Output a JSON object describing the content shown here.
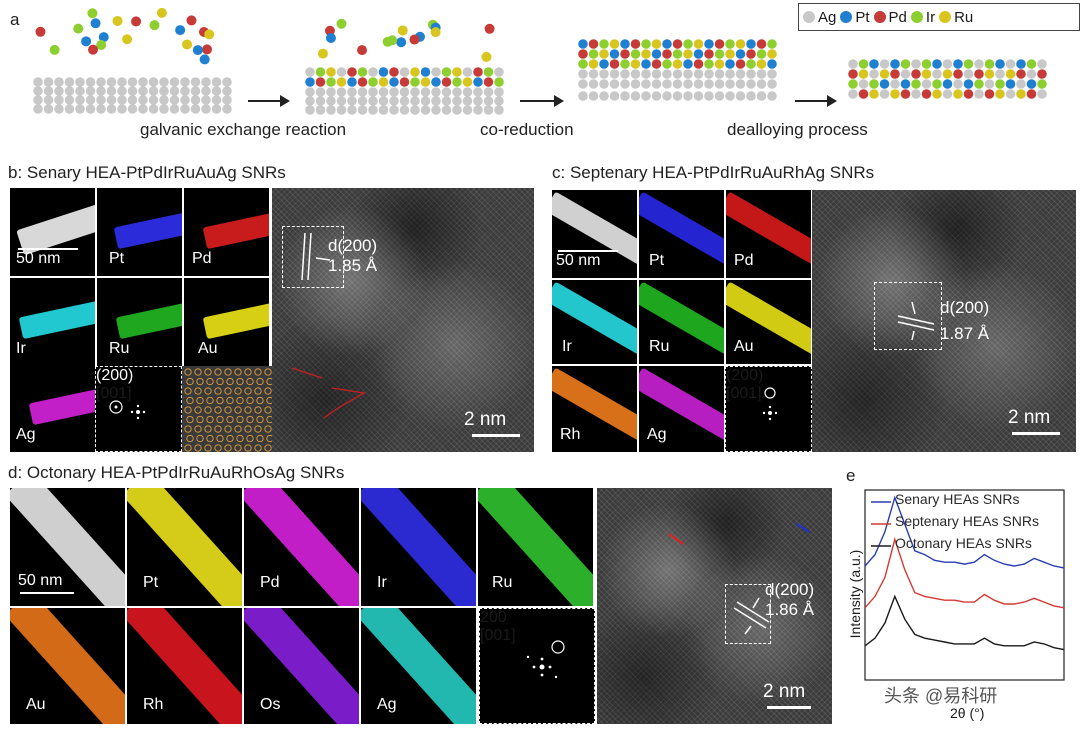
{
  "colors": {
    "ag": "#c8c8c8",
    "pt": "#1f7fd0",
    "pd": "#c63a38",
    "ir": "#8ccf2f",
    "ru": "#d8c61e",
    "blue_line": "#2a3fb0",
    "red_line": "#d23a34",
    "black_line": "#1a1a1a"
  },
  "panel_a": {
    "label": "a",
    "steps": [
      "galvanic exchange reaction",
      "co-reduction",
      "dealloying process"
    ],
    "legend": [
      {
        "name": "Ag",
        "color": "#c8c8c8"
      },
      {
        "name": "Pt",
        "color": "#1f7fd0"
      },
      {
        "name": "Pd",
        "color": "#c63a38"
      },
      {
        "name": "Ir",
        "color": "#8ccf2f"
      },
      {
        "name": "Ru",
        "color": "#d8c61e"
      }
    ]
  },
  "panel_b": {
    "title": "b: Senary HEA-PtPdIrRuAuAg SNRs",
    "tiles": [
      "Pt",
      "Pd",
      "Ir",
      "Ru",
      "Au",
      "Ag"
    ],
    "scale_small": "50 nm",
    "fft_spot": "(200)",
    "fft_zone": "[001]",
    "d_label": "d(200)",
    "d_value": "1.85 Å",
    "scale_large": "2 nm"
  },
  "panel_c": {
    "title": "c: Septenary HEA-PtPdIrRuAuRhAg SNRs",
    "tiles": [
      "Pt",
      "Pd",
      "Ir",
      "Ru",
      "Au",
      "Rh",
      "Ag"
    ],
    "scale_small": "50 nm",
    "fft_spot": "(200)",
    "fft_zone": "[001]",
    "d_label": "d(200)",
    "d_value": "1.87 Å",
    "scale_large": "2 nm"
  },
  "panel_d": {
    "title": "d: Octonary HEA-PtPdIrRuAuRhOsAg SNRs",
    "tiles": [
      "Pt",
      "Pd",
      "Ir",
      "Ru",
      "Au",
      "Rh",
      "Os",
      "Ag"
    ],
    "scale_small": "50 nm",
    "fft_spot": "200",
    "fft_zone": "[001]",
    "d_label": "d(200)",
    "d_value": "1.86 Å",
    "scale_large": "2 nm"
  },
  "panel_e": {
    "label": "e",
    "ylabel": "Intensity (a.u.)",
    "xlabel": "2θ (°)",
    "legend": [
      "Senary HEAs SNRs",
      "Septenary HEAs SNRs",
      "Octonary HEAs SNRs"
    ]
  },
  "chart_data": {
    "type": "line",
    "title": "",
    "xlabel": "2θ (°)",
    "ylabel": "Intensity (a.u.)",
    "x": [
      0,
      1,
      2,
      3,
      4,
      5,
      6,
      7,
      8,
      9,
      10,
      11,
      12,
      13,
      14,
      15,
      16,
      17,
      18,
      19,
      20
    ],
    "series": [
      {
        "name": "Senary HEAs SNRs",
        "values": [
          0.6,
          0.66,
          0.78,
          0.96,
          0.82,
          0.68,
          0.66,
          0.63,
          0.62,
          0.62,
          0.61,
          0.62,
          0.66,
          0.63,
          0.61,
          0.6,
          0.61,
          0.64,
          0.62,
          0.6,
          0.59
        ]
      },
      {
        "name": "Septenary HEAs SNRs",
        "values": [
          0.38,
          0.44,
          0.54,
          0.74,
          0.58,
          0.46,
          0.44,
          0.43,
          0.42,
          0.42,
          0.41,
          0.41,
          0.45,
          0.42,
          0.4,
          0.4,
          0.41,
          0.43,
          0.41,
          0.39,
          0.38
        ]
      },
      {
        "name": "Octonary HEAs SNRs",
        "values": [
          0.18,
          0.22,
          0.3,
          0.44,
          0.32,
          0.24,
          0.22,
          0.21,
          0.2,
          0.19,
          0.19,
          0.19,
          0.22,
          0.19,
          0.18,
          0.18,
          0.18,
          0.2,
          0.19,
          0.17,
          0.16
        ]
      }
    ]
  },
  "watermark": "头条 @易科研"
}
